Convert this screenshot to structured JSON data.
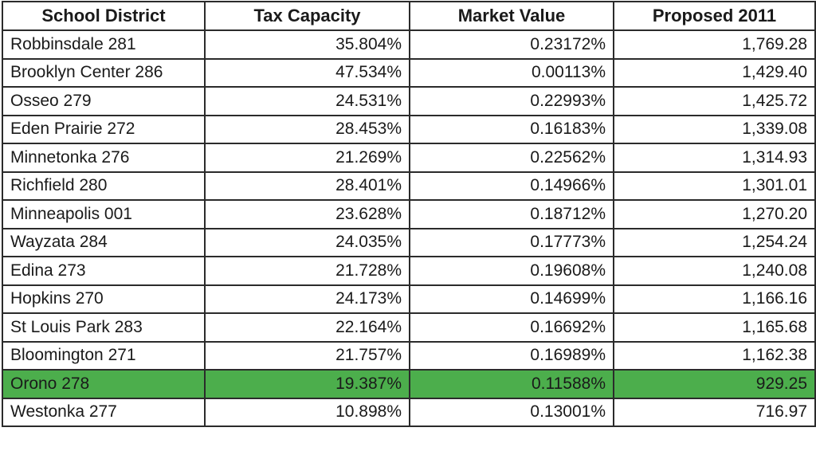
{
  "table": {
    "headers": [
      "School District",
      "Tax Capacity",
      "Market Value",
      "Proposed 2011"
    ],
    "rows": [
      {
        "district": "Robbinsdale 281",
        "tax_capacity": "35.804%",
        "market_value": "0.23172%",
        "proposed_2011": "1,769.28"
      },
      {
        "district": "Brooklyn Center 286",
        "tax_capacity": "47.534%",
        "market_value": "0.00113%",
        "proposed_2011": "1,429.40"
      },
      {
        "district": "Osseo 279",
        "tax_capacity": "24.531%",
        "market_value": "0.22993%",
        "proposed_2011": "1,425.72"
      },
      {
        "district": "Eden Prairie 272",
        "tax_capacity": "28.453%",
        "market_value": "0.16183%",
        "proposed_2011": "1,339.08"
      },
      {
        "district": "Minnetonka 276",
        "tax_capacity": "21.269%",
        "market_value": "0.22562%",
        "proposed_2011": "1,314.93"
      },
      {
        "district": "Richfield 280",
        "tax_capacity": "28.401%",
        "market_value": "0.14966%",
        "proposed_2011": "1,301.01"
      },
      {
        "district": "Minneapolis 001",
        "tax_capacity": "23.628%",
        "market_value": "0.18712%",
        "proposed_2011": "1,270.20"
      },
      {
        "district": "Wayzata 284",
        "tax_capacity": "24.035%",
        "market_value": "0.17773%",
        "proposed_2011": "1,254.24"
      },
      {
        "district": "Edina 273",
        "tax_capacity": "21.728%",
        "market_value": "0.19608%",
        "proposed_2011": "1,240.08"
      },
      {
        "district": "Hopkins 270",
        "tax_capacity": "24.173%",
        "market_value": "0.14699%",
        "proposed_2011": "1,166.16"
      },
      {
        "district": "St Louis Park 283",
        "tax_capacity": "22.164%",
        "market_value": "0.16692%",
        "proposed_2011": "1,165.68"
      },
      {
        "district": "Bloomington 271",
        "tax_capacity": "21.757%",
        "market_value": "0.16989%",
        "proposed_2011": "1,162.38"
      },
      {
        "district": "Orono 278",
        "tax_capacity": "19.387%",
        "market_value": "0.11588%",
        "proposed_2011": "929.25",
        "highlighted": true
      },
      {
        "district": "Westonka 277",
        "tax_capacity": "10.898%",
        "market_value": "0.13001%",
        "proposed_2011": "716.97"
      }
    ],
    "highlight_color": "#4cae4c",
    "border_color": "#2b2b2b"
  }
}
